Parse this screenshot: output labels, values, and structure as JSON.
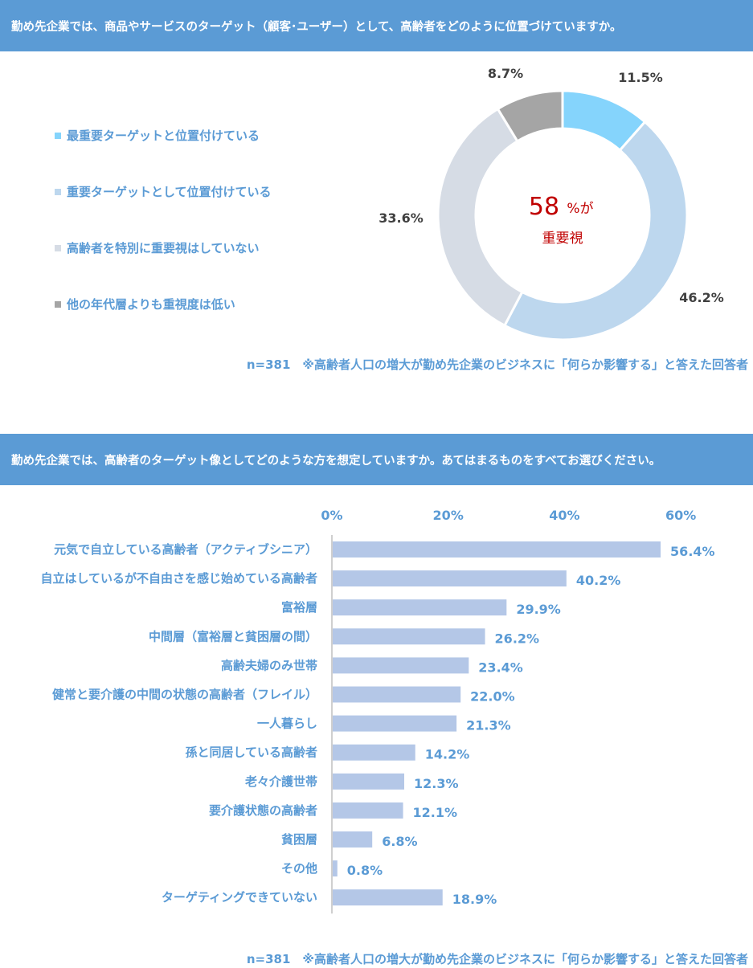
{
  "question1": "勤め先企業では、商品やサービスのターゲット（顧客･ユーザー）として、高齢者をどのように位置づけていますか。",
  "question2": "勤め先企業では、高齢者のターゲット像としてどのような方を想定していますか。あてはまるものをすべてお選びください。",
  "note": "n=381　※高齢者人口の増大が勤め先企業のビジネスに「何らか影響する」と答えた回答者",
  "center_value": "58",
  "center_suffix": "%が",
  "center_label": "重要視",
  "colors": {
    "header": "#5b9bd5",
    "label": "#5b9bd5",
    "bar": "#b4c7e7",
    "center": "#c00000"
  },
  "chart_data": [
    {
      "type": "pie",
      "donut": true,
      "categories": [
        "最重要ターゲットと位置付けている",
        "重要ターゲットとして位置付けている",
        "高齢者を特別に重要視はしていない",
        "他の年代層よりも重視度は低い"
      ],
      "values": [
        11.5,
        46.2,
        33.6,
        8.7
      ],
      "value_labels": [
        "11.5%",
        "46.2%",
        "33.6%",
        "8.7%"
      ],
      "colors": [
        "#85d4fc",
        "#bdd7ee",
        "#d6dce5",
        "#a5a5a5"
      ],
      "legend_position": "left"
    },
    {
      "type": "bar",
      "orientation": "horizontal",
      "categories": [
        "元気で自立している高齢者（アクティブシニア）",
        "自立はしているが不自由さを感じ始めている高齢者",
        "富裕層",
        "中間層（富裕層と貧困層の間）",
        "高齢夫婦のみ世帯",
        "健常と要介護の中間の状態の高齢者（フレイル）",
        "一人暮らし",
        "孫と同居している高齢者",
        "老々介護世帯",
        "要介護状態の高齢者",
        "貧困層",
        "その他",
        "ターゲティングできていない"
      ],
      "values": [
        56.4,
        40.2,
        29.9,
        26.2,
        23.4,
        22.0,
        21.3,
        14.2,
        12.3,
        12.1,
        6.8,
        0.8,
        18.9
      ],
      "value_labels": [
        "56.4%",
        "40.2%",
        "29.9%",
        "26.2%",
        "23.4%",
        "22.0%",
        "21.3%",
        "14.2%",
        "12.3%",
        "12.1%",
        "6.8%",
        "0.8%",
        "18.9%"
      ],
      "xlim": [
        0,
        60
      ],
      "xticks": [
        "0%",
        "20%",
        "40%",
        "60%"
      ],
      "tick_position": "top",
      "grid": false
    }
  ]
}
